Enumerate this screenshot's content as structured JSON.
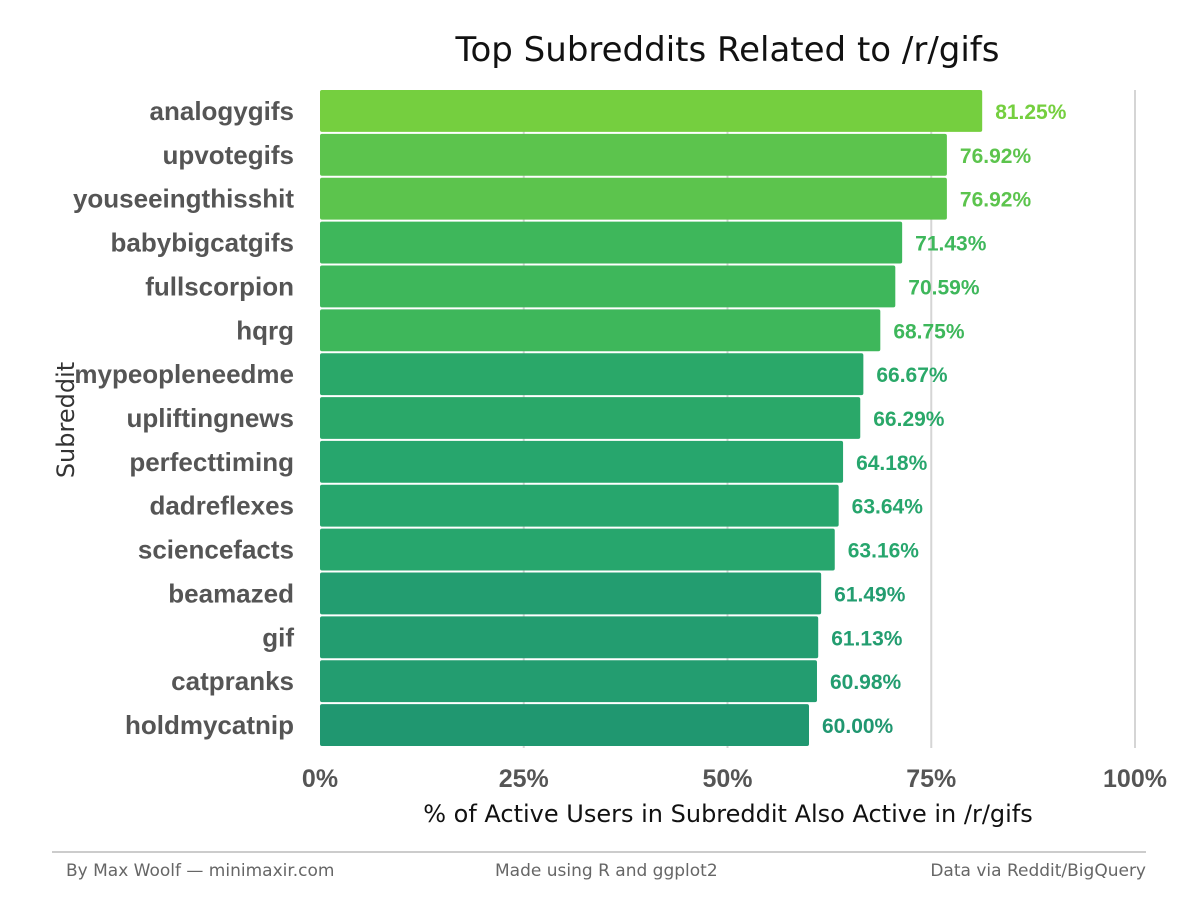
{
  "chart_data": {
    "type": "bar",
    "orientation": "horizontal",
    "title": "Top Subreddits Related to /r/gifs",
    "xlabel": "% of Active Users in Subreddit Also Active in /r/gifs",
    "ylabel": "Subreddit",
    "xlim": [
      0,
      100
    ],
    "x_ticks": [
      "0%",
      "25%",
      "50%",
      "75%",
      "100%"
    ],
    "x_tick_values": [
      0,
      25,
      50,
      75,
      100
    ],
    "grid": "vertical major lines",
    "categories": [
      "analogygifs",
      "upvotegifs",
      "youseeingthisshit",
      "babybigcatgifs",
      "fullscorpion",
      "hqrg",
      "mypeopleneedme",
      "upliftingnews",
      "perfecttiming",
      "dadreflexes",
      "sciencefacts",
      "beamazed",
      "gif",
      "catpranks",
      "holdmycatnip"
    ],
    "values": [
      81.25,
      76.92,
      76.92,
      71.43,
      70.59,
      68.75,
      66.67,
      66.29,
      64.18,
      63.64,
      63.16,
      61.49,
      61.13,
      60.98,
      60.0
    ],
    "labels": [
      "81.25%",
      "76.92%",
      "76.92%",
      "71.43%",
      "70.59%",
      "68.75%",
      "66.67%",
      "66.29%",
      "64.18%",
      "63.64%",
      "63.16%",
      "61.49%",
      "61.13%",
      "60.98%",
      "60.00%"
    ],
    "colors": [
      "#75cf3f",
      "#5cc44d",
      "#5cc44d",
      "#3eb75b",
      "#3eb75b",
      "#3eb75b",
      "#2aa869",
      "#2aa869",
      "#27a66d",
      "#27a66d",
      "#27a66d",
      "#239d70",
      "#239d70",
      "#239d70",
      "#209770"
    ]
  },
  "footer": {
    "left": "By Max Woolf — minimaxir.com",
    "center": "Made using R and ggplot2",
    "right": "Data via Reddit/BigQuery"
  }
}
